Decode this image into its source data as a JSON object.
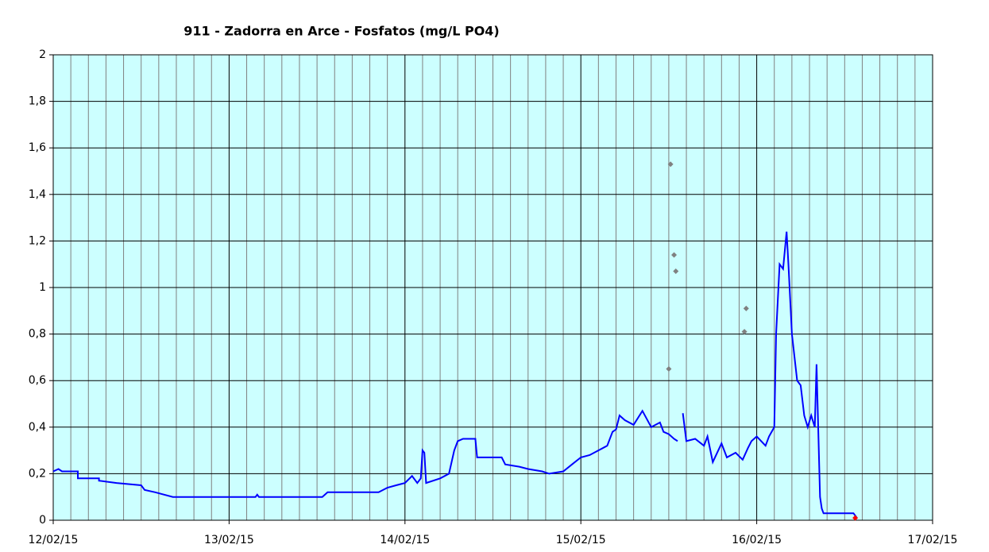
{
  "chart_data": {
    "type": "line",
    "title": "911 - Zadorra en Arce - Fosfatos (mg/L PO4)",
    "xlim": [
      12,
      17
    ],
    "xticks": [
      {
        "value": 12,
        "label": "12/02/15"
      },
      {
        "value": 13,
        "label": "13/02/15"
      },
      {
        "value": 14,
        "label": "14/02/15"
      },
      {
        "value": 15,
        "label": "15/02/15"
      },
      {
        "value": 16,
        "label": "16/02/15"
      },
      {
        "value": 17,
        "label": "17/02/15"
      }
    ],
    "ylim": [
      0,
      2
    ],
    "yticks": [
      0,
      {
        "value": 0.2,
        "label": "0,2"
      },
      {
        "value": 0.4,
        "label": "0,4"
      },
      {
        "value": 0.6,
        "label": "0,6"
      },
      {
        "value": 0.8,
        "label": "0,8"
      },
      1,
      {
        "value": 1.2,
        "label": "1,2"
      },
      {
        "value": 1.4,
        "label": "1,4"
      },
      {
        "value": 1.6,
        "label": "1,6"
      },
      {
        "value": 1.8,
        "label": "1,8"
      },
      2
    ],
    "grid": true,
    "plot_background": "#ccffff",
    "series": [
      {
        "kind": "line",
        "color": "#0000ff",
        "x": [
          12.0,
          12.03,
          12.05,
          12.14,
          12.14,
          12.26,
          12.26,
          12.36,
          12.5,
          12.52,
          12.58,
          12.68,
          13.15,
          13.16,
          13.17,
          13.53,
          13.56,
          13.85,
          13.9,
          13.95,
          14.0,
          14.04,
          14.07,
          14.09,
          14.1,
          14.11,
          14.12,
          14.2,
          14.25,
          14.28,
          14.3,
          14.33,
          14.4,
          14.41,
          14.55,
          14.57,
          14.65,
          14.7,
          14.78,
          14.82,
          14.9,
          14.95,
          15.0,
          15.05,
          15.1,
          15.15,
          15.18,
          15.2,
          15.22,
          15.25,
          15.3,
          15.35,
          15.4,
          15.45,
          15.47,
          15.5,
          15.53,
          15.55,
          15.565,
          15.58,
          15.6,
          15.65,
          15.7,
          15.72,
          15.75,
          15.8,
          15.83,
          15.88,
          15.92,
          15.95,
          15.97,
          16.0,
          16.05,
          16.07,
          16.1,
          16.11,
          16.13,
          16.15,
          16.17,
          16.18,
          16.2,
          16.23,
          16.25,
          16.27,
          16.29,
          16.31,
          16.33,
          16.34,
          16.36,
          16.37,
          16.38,
          16.55,
          16.57
        ],
        "values": [
          0.21,
          0.22,
          0.21,
          0.21,
          0.18,
          0.18,
          0.17,
          0.16,
          0.15,
          0.13,
          0.12,
          0.1,
          0.1,
          0.11,
          0.1,
          0.1,
          0.12,
          0.12,
          0.14,
          0.15,
          0.16,
          0.19,
          0.16,
          0.18,
          0.3,
          0.29,
          0.16,
          0.18,
          0.2,
          0.3,
          0.34,
          0.35,
          0.35,
          0.27,
          0.27,
          0.24,
          0.23,
          0.22,
          0.21,
          0.2,
          0.21,
          0.24,
          0.27,
          0.28,
          0.3,
          0.32,
          0.38,
          0.39,
          0.45,
          0.43,
          0.41,
          0.47,
          0.4,
          0.42,
          0.38,
          0.37,
          0.35,
          0.34,
          null,
          0.46,
          0.34,
          0.35,
          0.32,
          0.36,
          0.25,
          0.33,
          0.27,
          0.29,
          0.26,
          0.31,
          0.34,
          0.36,
          0.32,
          0.36,
          0.4,
          0.8,
          1.1,
          1.08,
          1.24,
          1.1,
          0.8,
          0.6,
          0.58,
          0.45,
          0.4,
          0.45,
          0.4,
          0.67,
          0.1,
          0.05,
          0.03,
          0.03,
          0.01
        ]
      },
      {
        "kind": "scatter",
        "color": "#808080",
        "x": [
          15.51,
          15.53,
          15.54,
          15.5,
          15.94,
          15.93
        ],
        "values": [
          1.53,
          1.14,
          1.07,
          0.65,
          0.91,
          0.81
        ]
      },
      {
        "kind": "scatter",
        "color": "#ff0000",
        "x": [
          16.56
        ],
        "values": [
          0.01
        ]
      }
    ]
  }
}
